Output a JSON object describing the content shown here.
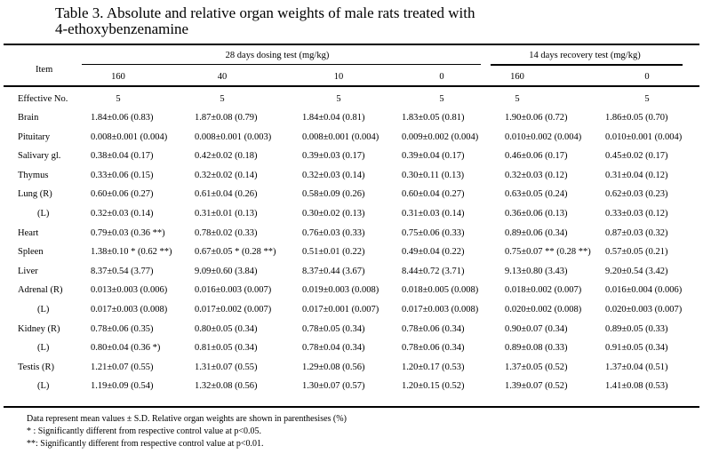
{
  "title_line1": "Table 3.  Absolute and relative organ weights of male rats treated with",
  "title_line2": "4-ethoxybenzenamine",
  "header": {
    "item": "Item",
    "group1": "28 days dosing test (mg/kg)",
    "group2": "14 days recovery test (mg/kg)",
    "doses": [
      "160",
      "40",
      "10",
      "0",
      "160",
      "0"
    ]
  },
  "effective": {
    "label": "Effective No.",
    "values": [
      "5",
      "5",
      "5",
      "5",
      "5",
      "5"
    ]
  },
  "rows": [
    {
      "label": "Brain",
      "values": [
        "1.84±0.06 (0.83)",
        "1.87±0.08 (0.79)",
        "1.84±0.04 (0.81)",
        "1.83±0.05 (0.81)",
        "1.90±0.06 (0.72)",
        "1.86±0.05 (0.70)"
      ]
    },
    {
      "label": "Pituitary",
      "values": [
        "0.008±0.001 (0.004)",
        "0.008±0.001 (0.003)",
        "0.008±0.001 (0.004)",
        "0.009±0.002 (0.004)",
        "0.010±0.002 (0.004)",
        "0.010±0.001 (0.004)"
      ]
    },
    {
      "label": "Salivary gl.",
      "values": [
        "0.38±0.04 (0.17)",
        "0.42±0.02 (0.18)",
        "0.39±0.03 (0.17)",
        "0.39±0.04 (0.17)",
        "0.46±0.06 (0.17)",
        "0.45±0.02 (0.17)"
      ]
    },
    {
      "label": "Thymus",
      "values": [
        "0.33±0.06 (0.15)",
        "0.32±0.02 (0.14)",
        "0.32±0.03 (0.14)",
        "0.30±0.11 (0.13)",
        "0.32±0.03 (0.12)",
        "0.31±0.04 (0.12)"
      ]
    },
    {
      "label": "Lung (R)",
      "values": [
        "0.60±0.06 (0.27)",
        "0.61±0.04 (0.26)",
        "0.58±0.09 (0.26)",
        "0.60±0.04 (0.27)",
        "0.63±0.05 (0.24)",
        "0.62±0.03 (0.23)"
      ]
    },
    {
      "label": "(L)",
      "sub": true,
      "values": [
        "0.32±0.03 (0.14)",
        "0.31±0.01 (0.13)",
        "0.30±0.02 (0.13)",
        "0.31±0.03 (0.14)",
        "0.36±0.06 (0.13)",
        "0.33±0.03 (0.12)"
      ]
    },
    {
      "label": "Heart",
      "values": [
        "0.79±0.03 (0.36 **)",
        "0.78±0.02 (0.33)",
        "0.76±0.03 (0.33)",
        "0.75±0.06 (0.33)",
        "0.89±0.06 (0.34)",
        "0.87±0.03 (0.32)"
      ]
    },
    {
      "label": "Spleen",
      "values": [
        "1.38±0.10 * (0.62 **)",
        "0.67±0.05 * (0.28 **)",
        "0.51±0.01 (0.22)",
        "0.49±0.04 (0.22)",
        "0.75±0.07 ** (0.28 **)",
        "0.57±0.05 (0.21)"
      ]
    },
    {
      "label": "Liver",
      "values": [
        "8.37±0.54 (3.77)",
        "9.09±0.60 (3.84)",
        "8.37±0.44 (3.67)",
        "8.44±0.72 (3.71)",
        "9.13±0.80 (3.43)",
        "9.20±0.54 (3.42)"
      ]
    },
    {
      "label": "Adrenal (R)",
      "values": [
        "0.013±0.003 (0.006)",
        "0.016±0.003 (0.007)",
        "0.019±0.003 (0.008)",
        "0.018±0.005 (0.008)",
        "0.018±0.002 (0.007)",
        "0.016±0.004 (0.006)"
      ]
    },
    {
      "label": "(L)",
      "sub": true,
      "values": [
        "0.017±0.003 (0.008)",
        "0.017±0.002 (0.007)",
        "0.017±0.001 (0.007)",
        "0.017±0.003 (0.008)",
        "0.020±0.002 (0.008)",
        "0.020±0.003 (0.007)"
      ]
    },
    {
      "label": "Kidney (R)",
      "values": [
        "0.78±0.06 (0.35)",
        "0.80±0.05 (0.34)",
        "0.78±0.05 (0.34)",
        "0.78±0.06 (0.34)",
        "0.90±0.07 (0.34)",
        "0.89±0.05 (0.33)"
      ]
    },
    {
      "label": "(L)",
      "sub": true,
      "values": [
        "0.80±0.04 (0.36 *)",
        "0.81±0.05 (0.34)",
        "0.78±0.04 (0.34)",
        "0.78±0.06 (0.34)",
        "0.89±0.08 (0.33)",
        "0.91±0.05 (0.34)"
      ]
    },
    {
      "label": "Testis (R)",
      "values": [
        "1.21±0.07 (0.55)",
        "1.31±0.07 (0.55)",
        "1.29±0.08 (0.56)",
        "1.20±0.17 (0.53)",
        "1.37±0.05 (0.52)",
        "1.37±0.04 (0.51)"
      ]
    },
    {
      "label": "(L)",
      "sub": true,
      "values": [
        "1.19±0.09 (0.54)",
        "1.32±0.08 (0.56)",
        "1.30±0.07 (0.57)",
        "1.20±0.15 (0.52)",
        "1.39±0.07 (0.52)",
        "1.41±0.08 (0.53)"
      ]
    }
  ],
  "footnotes": [
    "Data represent mean values ± S.D.   Relative organ weights are shown in parenthesises (%)",
    "* : Significantly different from respective control value at p<0.05.",
    "**: Significantly different from respective control value at p<0.01."
  ]
}
